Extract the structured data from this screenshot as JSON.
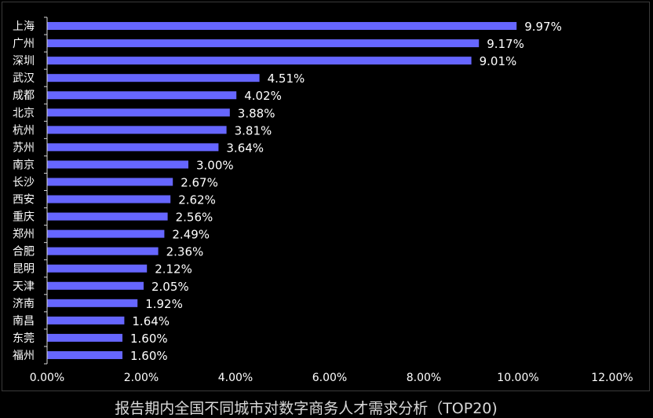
{
  "chart_data": {
    "type": "bar",
    "orientation": "horizontal",
    "title": "报告期内全国不同城市对数字商务人才需求分析（TOP20)",
    "categories": [
      "上海",
      "广州",
      "深圳",
      "武汉",
      "成都",
      "北京",
      "杭州",
      "苏州",
      "南京",
      "长沙",
      "西安",
      "重庆",
      "郑州",
      "合肥",
      "昆明",
      "天津",
      "济南",
      "南昌",
      "东莞",
      "福州"
    ],
    "values": [
      9.97,
      9.17,
      9.01,
      4.51,
      4.02,
      3.88,
      3.81,
      3.64,
      3.0,
      2.67,
      2.62,
      2.56,
      2.49,
      2.36,
      2.12,
      2.05,
      1.92,
      1.64,
      1.6,
      1.6
    ],
    "value_labels": [
      "9.97%",
      "9.17%",
      "9.01%",
      "4.51%",
      "4.02%",
      "3.88%",
      "3.81%",
      "3.64%",
      "3.00%",
      "2.67%",
      "2.62%",
      "2.56%",
      "2.49%",
      "2.36%",
      "2.12%",
      "2.05%",
      "1.92%",
      "1.64%",
      "1.60%",
      "1.60%"
    ],
    "xlim": [
      0,
      12
    ],
    "x_ticks": [
      0,
      2,
      4,
      6,
      8,
      10,
      12
    ],
    "x_tick_labels": [
      "0.00%",
      "2.00%",
      "4.00%",
      "6.00%",
      "8.00%",
      "10.00%",
      "12.00%"
    ],
    "xlabel": "",
    "ylabel": "",
    "grid": false,
    "legend": "none",
    "colors": {
      "bar": "#6666ff",
      "background": "#000000",
      "text": "#ffffff",
      "axis": "#d9d9d9"
    }
  }
}
